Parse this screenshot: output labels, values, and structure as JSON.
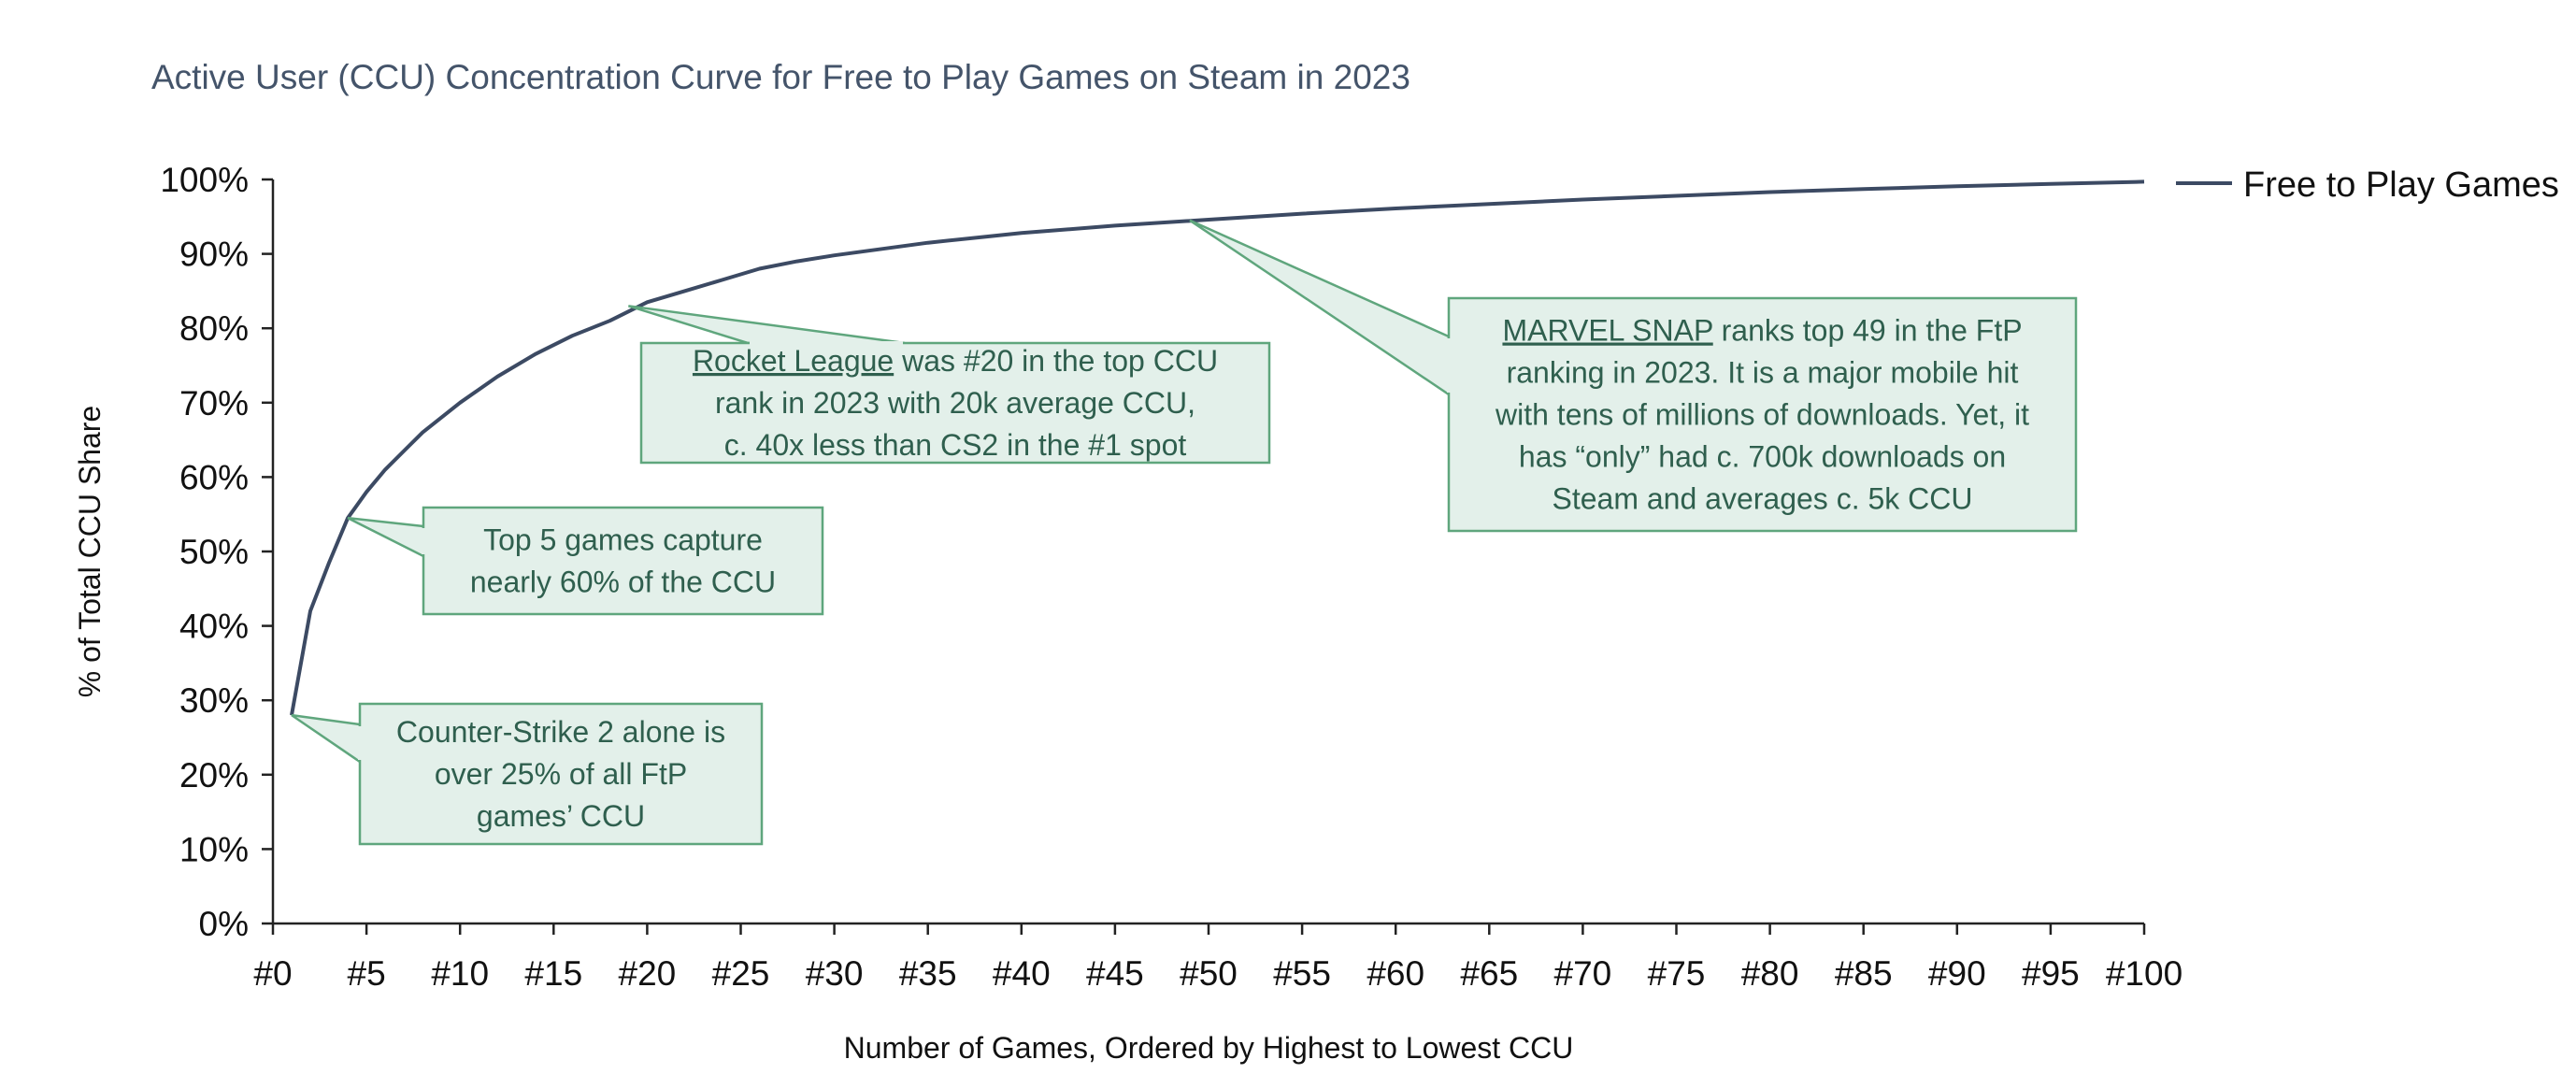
{
  "chart_data": {
    "type": "line",
    "title": "Active User (CCU) Concentration Curve for Free to Play Games on Steam in 2023",
    "xlabel": "Number of Games, Ordered by Highest to Lowest CCU",
    "ylabel": "% of Total CCU Share",
    "xlim": [
      0,
      100
    ],
    "ylim": [
      0,
      100
    ],
    "x_tick_values": [
      0,
      5,
      10,
      15,
      20,
      25,
      30,
      35,
      40,
      45,
      50,
      55,
      60,
      65,
      70,
      75,
      80,
      85,
      90,
      95,
      100
    ],
    "x_tick_labels": [
      "#0",
      "#5",
      "#10",
      "#15",
      "#20",
      "#25",
      "#30",
      "#35",
      "#40",
      "#45",
      "#50",
      "#55",
      "#60",
      "#65",
      "#70",
      "#75",
      "#80",
      "#85",
      "#90",
      "#95",
      "#100"
    ],
    "y_tick_values": [
      0,
      10,
      20,
      30,
      40,
      50,
      60,
      70,
      80,
      90,
      100
    ],
    "y_tick_labels": [
      "0%",
      "10%",
      "20%",
      "30%",
      "40%",
      "50%",
      "60%",
      "70%",
      "80%",
      "90%",
      "100%"
    ],
    "grid": false,
    "legend": "right",
    "series": [
      {
        "name": "Free to Play Games",
        "color": "#3c4a63",
        "x": [
          1,
          2,
          3,
          4,
          5,
          6,
          7,
          8,
          9,
          10,
          12,
          14,
          16,
          18,
          20,
          22,
          24,
          26,
          28,
          30,
          35,
          40,
          45,
          50,
          55,
          60,
          65,
          70,
          75,
          80,
          85,
          90,
          95,
          100
        ],
        "y": [
          28,
          42,
          48.5,
          54.5,
          58,
          61,
          63.5,
          66,
          68,
          70,
          73.5,
          76.5,
          79,
          81,
          83.5,
          85,
          86.5,
          88,
          89,
          89.8,
          91.5,
          92.8,
          93.8,
          94.6,
          95.4,
          96.1,
          96.7,
          97.3,
          97.8,
          98.3,
          98.7,
          99.1,
          99.4,
          99.7
        ]
      }
    ],
    "annotations": [
      {
        "id": "cs2",
        "anchor_x": 1,
        "anchor_y": 28,
        "lines": [
          [
            {
              "t": "Counter-Strike 2 alone is"
            }
          ],
          [
            {
              "t": "over 25% of all FtP"
            }
          ],
          [
            {
              "t": "games’ CCU"
            }
          ]
        ]
      },
      {
        "id": "top5",
        "anchor_x": 4,
        "anchor_y": 54.5,
        "lines": [
          [
            {
              "t": "Top 5 games capture"
            }
          ],
          [
            {
              "t": "nearly 60% of the CCU"
            }
          ]
        ]
      },
      {
        "id": "rocket",
        "anchor_x": 19,
        "anchor_y": 83,
        "lines": [
          [
            {
              "t": "Rocket League",
              "u": true
            },
            {
              "t": " was #20 in the top CCU"
            }
          ],
          [
            {
              "t": "rank in 2023 with 20k average CCU,"
            }
          ],
          [
            {
              "t": "c. 40x less than CS2 in the #1 spot"
            }
          ]
        ]
      },
      {
        "id": "snap",
        "anchor_x": 49,
        "anchor_y": 94.5,
        "lines": [
          [
            {
              "t": "MARVEL SNAP",
              "u": true
            },
            {
              "t": " ranks top 49 in the FtP"
            }
          ],
          [
            {
              "t": "ranking in 2023. It is a major mobile hit"
            }
          ],
          [
            {
              "t": "with tens of millions of downloads. Yet, it"
            }
          ],
          [
            {
              "t": "has “only” had c. 700k downloads on"
            }
          ],
          [
            {
              "t": "Steam and averages c. 5k CCU"
            }
          ]
        ]
      }
    ]
  }
}
